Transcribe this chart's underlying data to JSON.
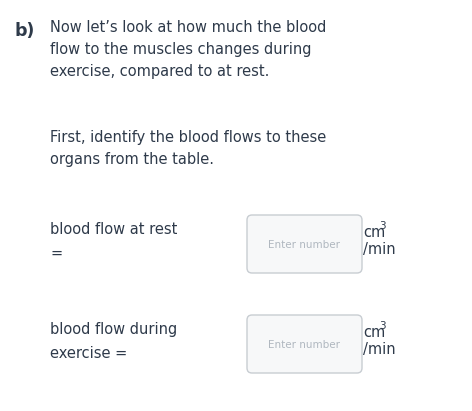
{
  "bg_color": "#ffffff",
  "text_color": "#2e3a4a",
  "placeholder_color": "#b0b8c0",
  "box_border_color": "#c8cdd2",
  "box_fill_color": "#f7f8f9",
  "b_label": "b)",
  "para1_lines": [
    "Now let’s look at how much the blood",
    "flow to the muscles changes during",
    "exercise, compared to at rest."
  ],
  "para2_lines": [
    "First, identify the blood flows to these",
    "organs from the table."
  ],
  "row1_label_lines": [
    "blood flow at rest",
    "="
  ],
  "row2_label_lines": [
    "blood flow during",
    "exercise ="
  ],
  "placeholder_text": "Enter number",
  "unit_sup": "3",
  "unit_base": "cm",
  "unit_per": "/min",
  "font_size_body": 10.5,
  "font_size_b": 12.5,
  "font_size_placeholder": 7.5,
  "font_size_unit": 10.5,
  "font_size_sup": 7.5
}
